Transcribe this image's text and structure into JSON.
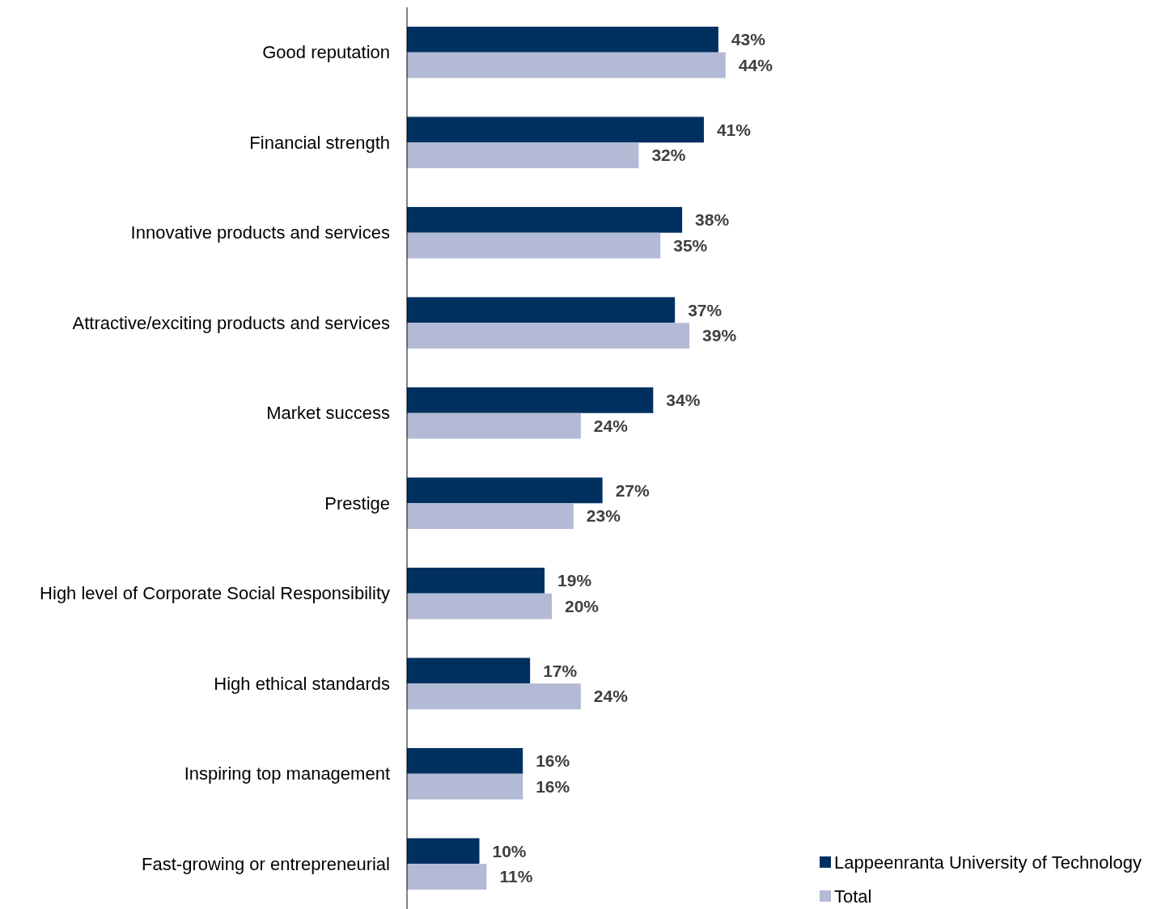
{
  "chart_data": {
    "type": "bar",
    "orientation": "horizontal",
    "categories": [
      "Good reputation",
      "Financial strength",
      "Innovative products and services",
      "Attractive/exciting products and services",
      "Market success",
      "Prestige",
      "High level of Corporate Social Responsibility",
      "High ethical standards",
      "Inspiring top management",
      "Fast-growing or entrepreneurial"
    ],
    "series": [
      {
        "name": "Lappeenranta University of Technology",
        "color": "#003060",
        "values": [
          43,
          41,
          38,
          37,
          34,
          27,
          19,
          17,
          16,
          10
        ],
        "value_labels": [
          "43%",
          "41%",
          "38%",
          "37%",
          "34%",
          "27%",
          "19%",
          "17%",
          "16%",
          "10%"
        ]
      },
      {
        "name": "Total",
        "color": "#b3bad6",
        "values": [
          44,
          32,
          35,
          39,
          24,
          23,
          20,
          24,
          16,
          11
        ],
        "value_labels": [
          "44%",
          "32%",
          "35%",
          "39%",
          "24%",
          "23%",
          "20%",
          "24%",
          "16%",
          "11%"
        ]
      }
    ],
    "legend": "bottom right"
  }
}
